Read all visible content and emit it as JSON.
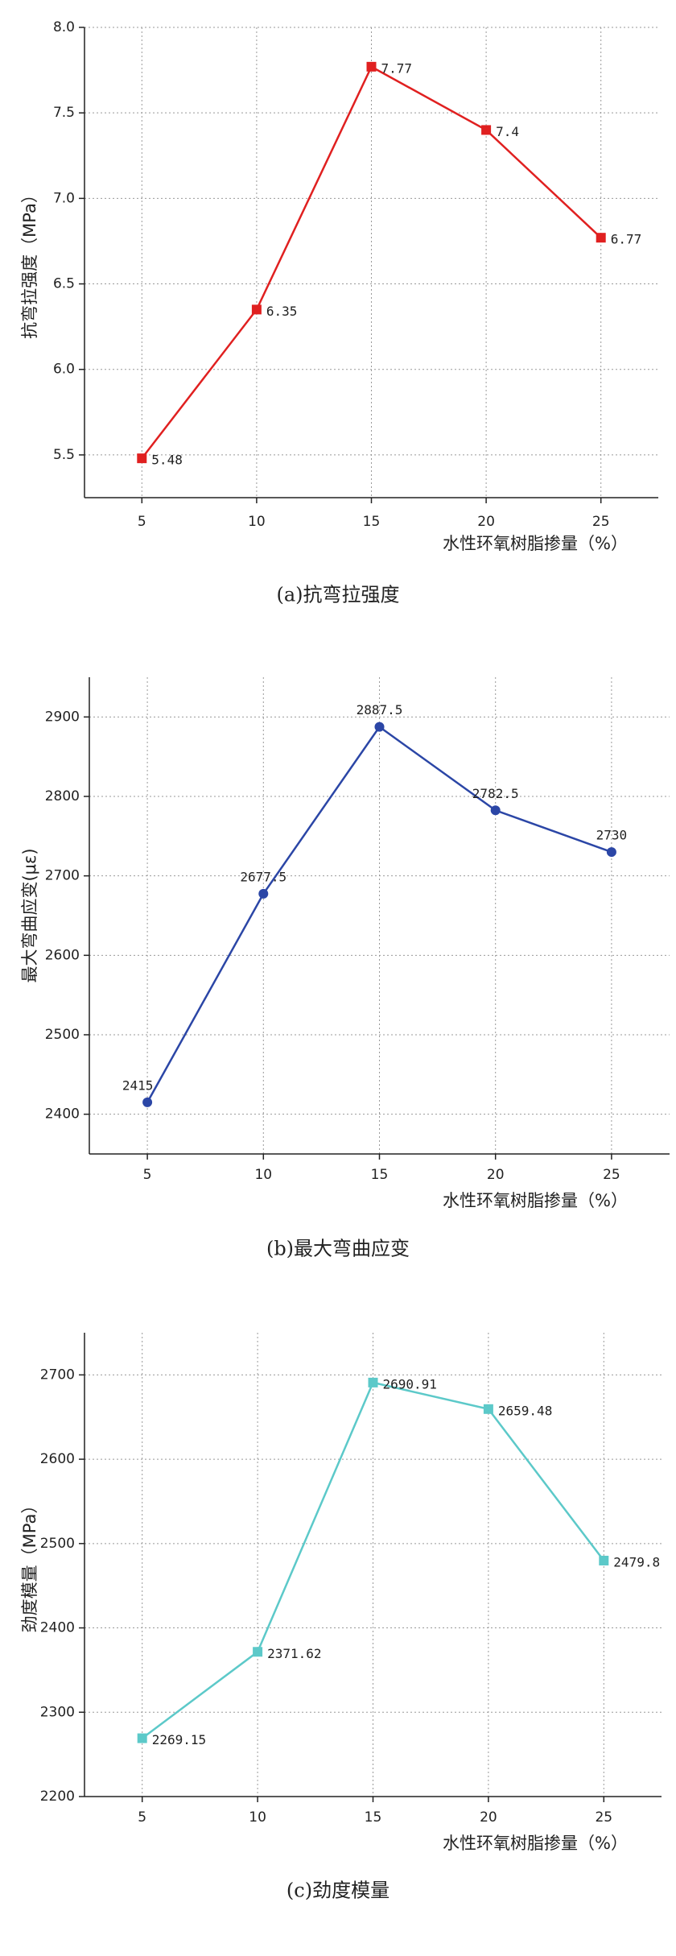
{
  "chart_data": [
    {
      "type": "line",
      "caption": "(a)抗弯拉强度",
      "x_label": "水性环氧树脂掺量（%）",
      "y_label": "抗弯拉强度（MPa）",
      "x": [
        5,
        10,
        15,
        20,
        25
      ],
      "values": [
        5.48,
        6.35,
        7.77,
        7.4,
        6.77
      ],
      "color": "#e02020",
      "marker": "square",
      "xlim": [
        2.5,
        27.5
      ],
      "xticks": [
        5,
        10,
        15,
        20,
        25
      ],
      "ylim": [
        5.25,
        8.0
      ],
      "yticks": [
        {
          "value": 5.5,
          "label": "5.5"
        },
        {
          "value": 6.0,
          "label": "6.0"
        },
        {
          "value": 6.5,
          "label": "6.5"
        },
        {
          "value": 7.0,
          "label": "7.0"
        },
        {
          "value": 7.5,
          "label": "7.5"
        },
        {
          "value": 8.0,
          "label": "8.0"
        }
      ],
      "grid": true
    },
    {
      "type": "line",
      "caption": "(b)最大弯曲应变",
      "x_label": "水性环氧树脂掺量（%）",
      "y_label": "最大弯曲应变(με)",
      "x": [
        5,
        10,
        15,
        20,
        25
      ],
      "values": [
        2415,
        2677.5,
        2887.5,
        2782.5,
        2730
      ],
      "color": "#2b46a6",
      "marker": "circle",
      "xlim": [
        2.5,
        27.5
      ],
      "xticks": [
        5,
        10,
        15,
        20,
        25
      ],
      "ylim": [
        2350,
        2950
      ],
      "yticks": [
        2400,
        2500,
        2600,
        2700,
        2800,
        2900
      ],
      "grid": true
    },
    {
      "type": "line",
      "caption": "(c)劲度模量",
      "x_label": "水性环氧树脂掺量（%）",
      "y_label": "劲度模量（MPa）",
      "x": [
        5,
        10,
        15,
        20,
        25
      ],
      "values": [
        2269.15,
        2371.62,
        2690.91,
        2659.48,
        2479.8
      ],
      "color": "#5cc9c9",
      "marker": "square",
      "xlim": [
        2.5,
        27.5
      ],
      "xticks": [
        5,
        10,
        15,
        20,
        25
      ],
      "ylim": [
        2200,
        2750
      ],
      "yticks": [
        2200,
        2300,
        2400,
        2500,
        2600,
        2700
      ],
      "grid": true
    }
  ]
}
